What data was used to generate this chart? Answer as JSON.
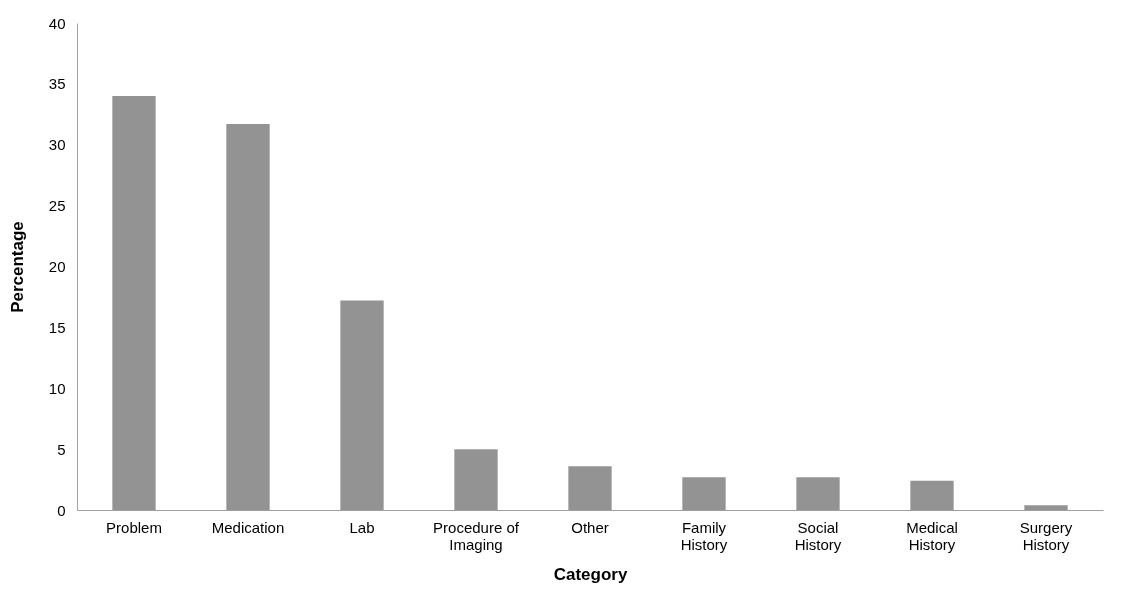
{
  "chart_data": {
    "type": "bar",
    "xlabel": "Category",
    "ylabel": "Percentage",
    "categories": [
      "Problem",
      "Medication",
      "Lab",
      "Procedure of Imaging",
      "Other",
      "Family History",
      "Social History",
      "Medical History",
      "Surgery History"
    ],
    "values": [
      34.0,
      31.7,
      17.2,
      5.0,
      3.6,
      2.7,
      2.7,
      2.4,
      0.4
    ],
    "color": "#939393",
    "ylim": [
      0,
      40
    ],
    "yticks": [
      0,
      5,
      10,
      15,
      20,
      25,
      30,
      35,
      40
    ],
    "grid": false
  }
}
